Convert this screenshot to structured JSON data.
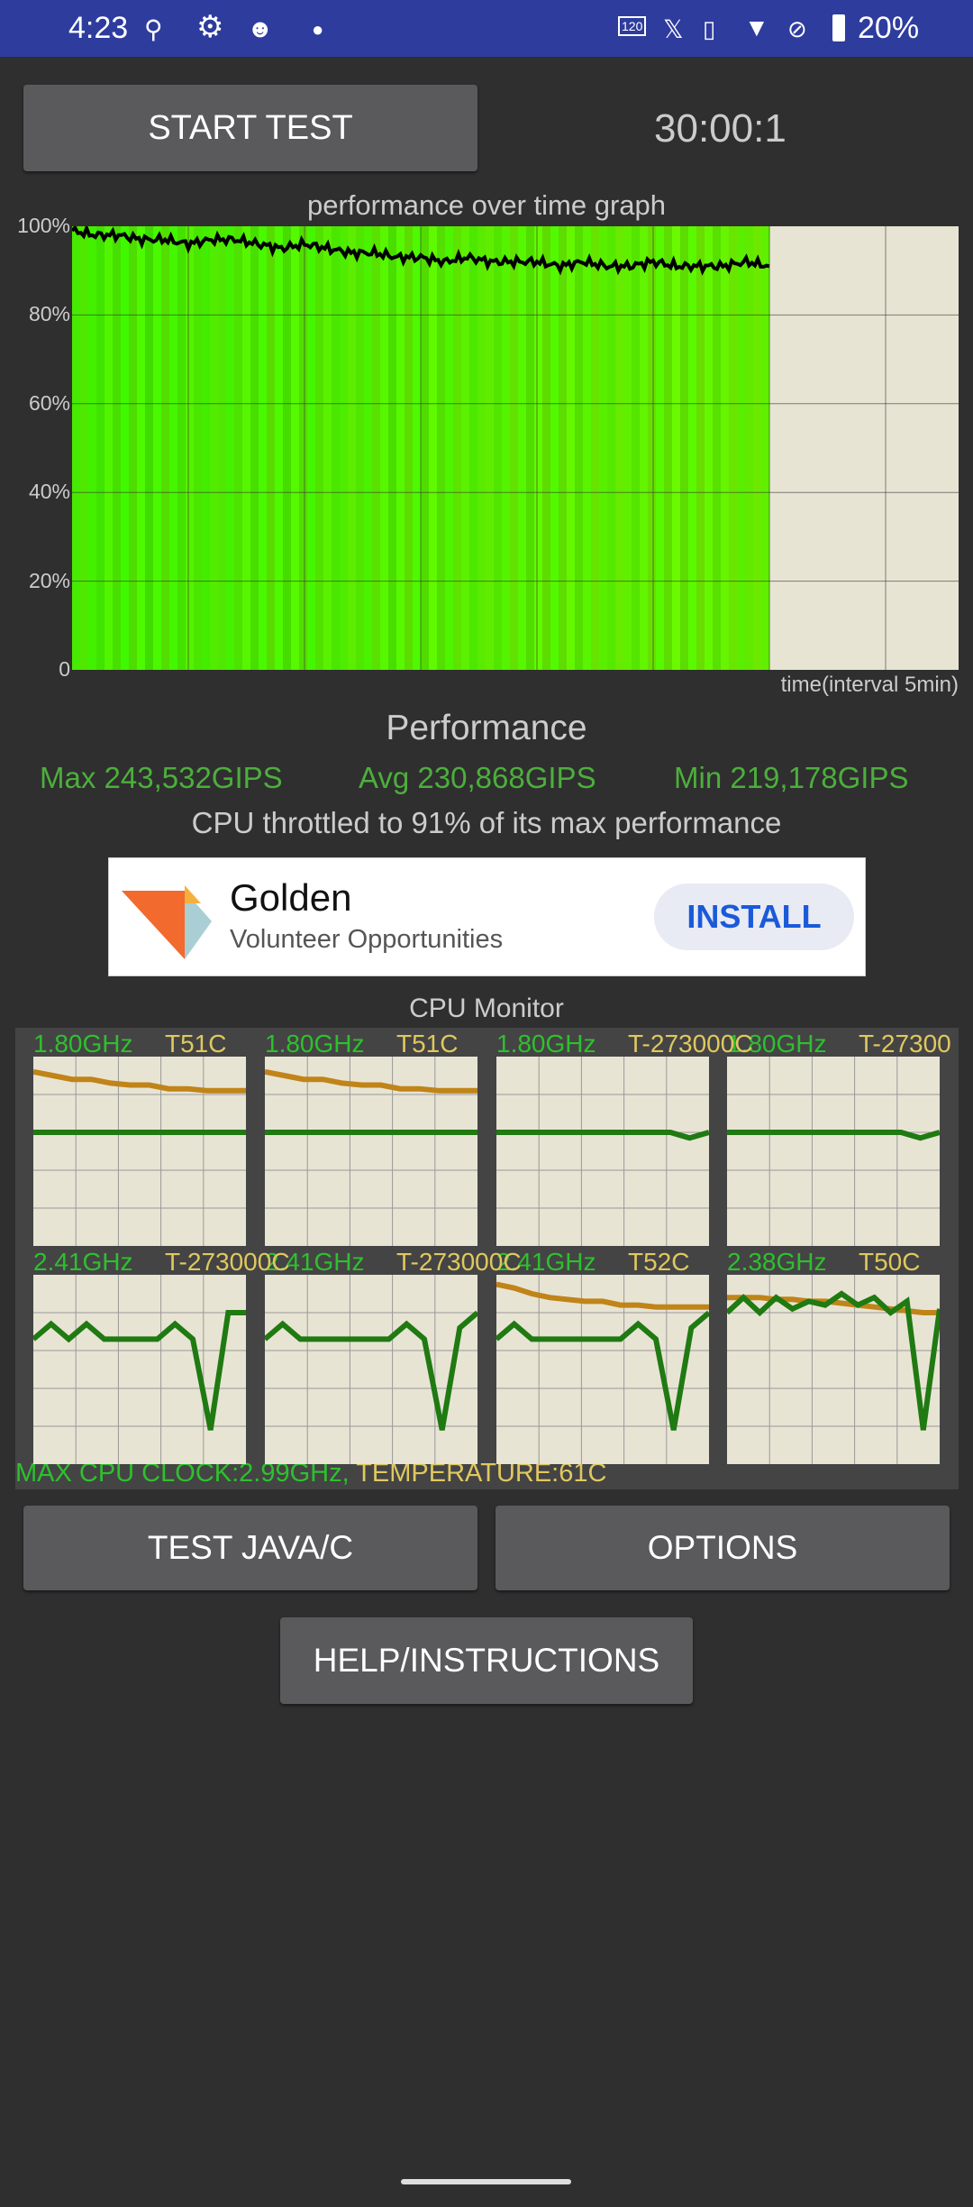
{
  "status_bar": {
    "time": "4:23",
    "battery": "20%",
    "left_icons": [
      "pin-icon",
      "gear-icon",
      "assistant-icon",
      "dot-icon"
    ],
    "right_icons": [
      "120hz-icon",
      "x-icon",
      "vibrate-icon",
      "wifi-icon",
      "no-sim-icon",
      "battery-icon"
    ],
    "color": "#2e3c9e"
  },
  "controls": {
    "start_label": "START TEST",
    "timer": "30:00:1"
  },
  "chart_data": {
    "type": "area",
    "title": "performance over time graph",
    "xlabel": "time(interval 5min)",
    "ylabel": "",
    "y_ticks": [
      "100%",
      "80%",
      "60%",
      "40%",
      "20%",
      "0"
    ],
    "ylim": [
      0,
      100
    ],
    "xlim_minutes": [
      0,
      38
    ],
    "grid": true,
    "fill_color": "#5cf000",
    "line_color": "#000000",
    "x": [
      0,
      1,
      2,
      3,
      4,
      5,
      6,
      7,
      8,
      9,
      10,
      11,
      12,
      13,
      14,
      15,
      16,
      17,
      18,
      19,
      20,
      21,
      22,
      23,
      24,
      25,
      26,
      27,
      28,
      29,
      30
    ],
    "values": [
      99,
      98,
      98,
      97,
      97,
      96,
      97,
      97,
      96,
      95,
      96,
      95,
      94,
      94,
      93,
      93,
      92,
      93,
      92,
      92,
      92,
      91,
      92,
      91,
      91,
      92,
      91,
      91,
      91,
      92,
      91
    ]
  },
  "performance": {
    "heading": "Performance",
    "max": "Max 243,532GIPS",
    "avg": "Avg 230,868GIPS",
    "min": "Min 219,178GIPS",
    "throttle": "CPU throttled to 91% of its max performance"
  },
  "ad": {
    "title": "Golden",
    "subtitle": "Volunteer Opportunities",
    "button": "INSTALL"
  },
  "cpu_monitor": {
    "title": "CPU Monitor",
    "footer_clock": "MAX CPU CLOCK:2.99GHz,",
    "footer_temp": "TEMPERATURE:61C",
    "cores": [
      {
        "freq": "1.80GHz",
        "temp": "T51C",
        "freq_series": [
          60,
          60,
          60,
          60,
          60,
          60,
          60,
          60,
          60,
          60,
          60,
          60
        ],
        "temp_series": [
          92,
          90,
          88,
          88,
          86,
          85,
          85,
          83,
          83,
          82,
          82,
          82
        ]
      },
      {
        "freq": "1.80GHz",
        "temp": "T51C",
        "freq_series": [
          60,
          60,
          60,
          60,
          60,
          60,
          60,
          60,
          60,
          60,
          60,
          60
        ],
        "temp_series": [
          92,
          90,
          88,
          88,
          86,
          85,
          85,
          83,
          83,
          82,
          82,
          82
        ]
      },
      {
        "freq": "1.80GHz",
        "temp": "T-273000C",
        "freq_series": [
          60,
          60,
          60,
          60,
          60,
          60,
          60,
          60,
          60,
          60,
          57,
          60
        ],
        "temp_series": []
      },
      {
        "freq": "1.80GHz",
        "temp": "T-27300",
        "freq_series": [
          60,
          60,
          60,
          60,
          60,
          60,
          60,
          60,
          60,
          60,
          57,
          60
        ],
        "temp_series": []
      },
      {
        "freq": "2.41GHz",
        "temp": "T-273000C",
        "freq_series": [
          66,
          74,
          66,
          74,
          66,
          66,
          66,
          66,
          74,
          66,
          18,
          80,
          80
        ],
        "temp_series": []
      },
      {
        "freq": "2.41GHz",
        "temp": "T-273000C",
        "freq_series": [
          66,
          74,
          66,
          66,
          66,
          66,
          66,
          66,
          74,
          66,
          18,
          72,
          80
        ],
        "temp_series": []
      },
      {
        "freq": "2.41GHz",
        "temp": "T52C",
        "freq_series": [
          66,
          74,
          66,
          66,
          66,
          66,
          66,
          66,
          74,
          66,
          18,
          72,
          80
        ],
        "temp_series": [
          95,
          93,
          90,
          88,
          87,
          86,
          86,
          84,
          84,
          83,
          83,
          83,
          83
        ]
      },
      {
        "freq": "2.38GHz",
        "temp": "T50C",
        "freq_series": [
          80,
          88,
          80,
          88,
          82,
          86,
          84,
          90,
          84,
          88,
          80,
          86,
          18,
          82
        ],
        "temp_series": [
          88,
          88,
          88,
          87,
          87,
          86,
          86,
          85,
          84,
          83,
          82,
          81,
          80,
          80
        ]
      }
    ]
  },
  "buttons": {
    "test_java": "TEST JAVA/C",
    "options": "OPTIONS",
    "help": "HELP/INSTRUCTIONS"
  }
}
